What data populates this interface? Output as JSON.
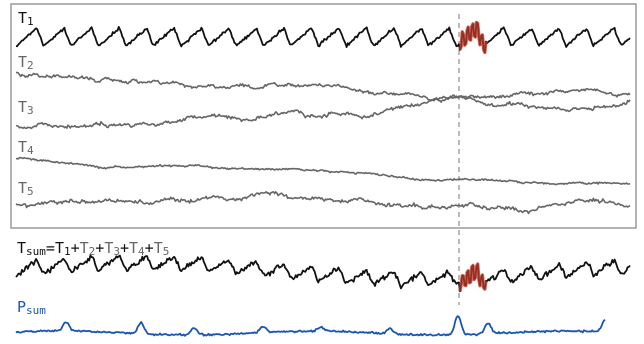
{
  "colors": {
    "frame": "#9a9a9a",
    "trace_dark": "#111111",
    "trace_gray": "#666666",
    "trace_blue": "#1a56b0",
    "highlight": "#c0392b",
    "marker": "#777777"
  },
  "traces": [
    {
      "name": "T",
      "sub": "1",
      "style": "dark",
      "kind": "spiky"
    },
    {
      "name": "T",
      "sub": "2",
      "style": "gray",
      "kind": "noise"
    },
    {
      "name": "T",
      "sub": "3",
      "style": "gray",
      "kind": "noise"
    },
    {
      "name": "T",
      "sub": "4",
      "style": "gray",
      "kind": "noise"
    },
    {
      "name": "T",
      "sub": "5",
      "style": "gray",
      "kind": "noise"
    }
  ],
  "sum": {
    "left_name": "T",
    "left_sub": "sum",
    "equals": "=",
    "terms": [
      {
        "name": "T",
        "sub": "1"
      },
      {
        "name": "T",
        "sub": "2"
      },
      {
        "name": "T",
        "sub": "3"
      },
      {
        "name": "T",
        "sub": "4"
      },
      {
        "name": "T",
        "sub": "5"
      }
    ],
    "plus": "+"
  },
  "psum": {
    "name": "P",
    "sub": "sum"
  }
}
